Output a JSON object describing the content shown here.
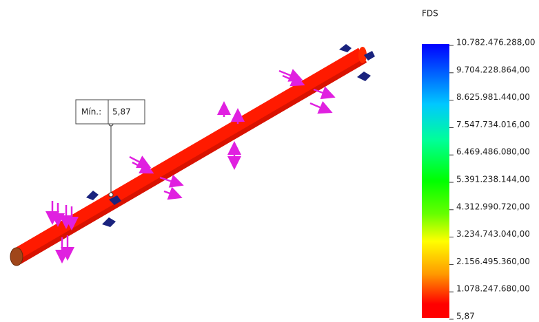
{
  "legend": {
    "title": "FDS",
    "labels": [
      "10.782.476.288,00",
      "9.704.228.864,00",
      "8.625.981.440,00",
      "7.547.734.016,00",
      "6.469.486.080,00",
      "5.391.238.144,00",
      "4.312.990.720,00",
      "3.234.743.040,00",
      "2.156.495.360,00",
      "1.078.247.680,00",
      "5,87"
    ]
  },
  "annotation": {
    "label": "Mín.:",
    "value": "5,87"
  }
}
